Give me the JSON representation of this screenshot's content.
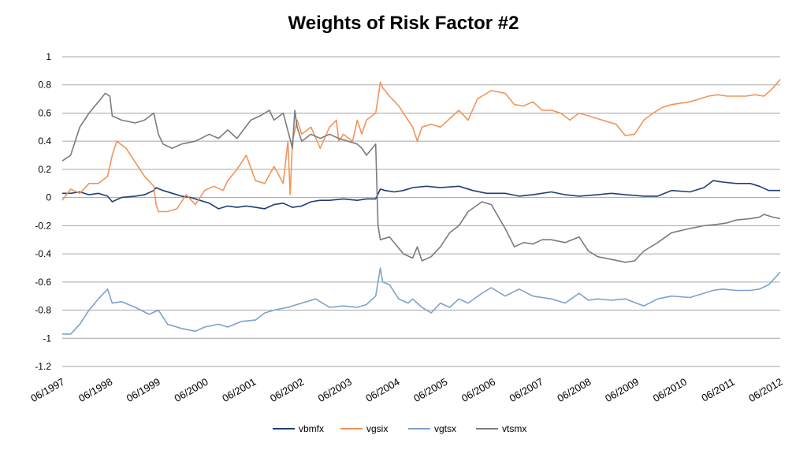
{
  "chart_data": {
    "type": "line",
    "title": "Weights of Risk Factor #2",
    "xlabel": "",
    "ylabel": "",
    "ylim": [
      -1.2,
      1
    ],
    "yticks": [
      1,
      0.8,
      0.6,
      0.4,
      0.2,
      0,
      -0.2,
      -0.4,
      -0.6,
      -0.8,
      -1,
      -1.2
    ],
    "ytick_labels": [
      "1",
      "0.8",
      "0.6",
      "0.4",
      "0.2",
      "0",
      "-0.2",
      "-0.4",
      "-0.6",
      "-0.8",
      "-1",
      "-1.2"
    ],
    "xlim": [
      1997.42,
      2012.95
    ],
    "xtick_labels": [
      "06/1997",
      "06/1998",
      "06/1999",
      "06/2000",
      "06/2001",
      "06/2002",
      "06/2003",
      "06/2004",
      "06/2005",
      "06/2006",
      "06/2007",
      "06/2008",
      "06/2009",
      "06/2010",
      "06/2011",
      "06/2012"
    ],
    "grid": true,
    "legend_position": "bottom",
    "series": [
      {
        "name": "vbmfx",
        "color": "#1f3f73",
        "x": [
          1997.42,
          1997.6,
          1997.8,
          1998.0,
          1998.2,
          1998.4,
          1998.5,
          1998.7,
          1999.0,
          1999.2,
          1999.4,
          1999.45,
          1999.6,
          1999.8,
          2000.0,
          2000.2,
          2000.4,
          2000.6,
          2000.8,
          2001.0,
          2001.2,
          2001.4,
          2001.6,
          2001.8,
          2002.0,
          2002.2,
          2002.4,
          2002.6,
          2002.8,
          2003.0,
          2003.2,
          2003.5,
          2003.8,
          2004.0,
          2004.2,
          2004.3,
          2004.4,
          2004.6,
          2004.8,
          2005.0,
          2005.3,
          2005.6,
          2006.0,
          2006.3,
          2006.6,
          2007.0,
          2007.3,
          2007.6,
          2008.0,
          2008.3,
          2008.6,
          2009.0,
          2009.3,
          2009.6,
          2010.0,
          2010.3,
          2010.6,
          2011.0,
          2011.3,
          2011.5,
          2011.7,
          2012.0,
          2012.3,
          2012.5,
          2012.7,
          2012.95
        ],
        "values": [
          0.03,
          0.03,
          0.04,
          0.02,
          0.03,
          0.01,
          -0.03,
          0.0,
          0.01,
          0.02,
          0.05,
          0.07,
          0.05,
          0.03,
          0.01,
          0.0,
          -0.02,
          -0.04,
          -0.08,
          -0.06,
          -0.07,
          -0.06,
          -0.07,
          -0.08,
          -0.05,
          -0.04,
          -0.07,
          -0.06,
          -0.03,
          -0.02,
          -0.02,
          -0.01,
          -0.02,
          -0.01,
          -0.01,
          0.06,
          0.05,
          0.04,
          0.05,
          0.07,
          0.08,
          0.07,
          0.08,
          0.05,
          0.03,
          0.03,
          0.01,
          0.02,
          0.04,
          0.02,
          0.01,
          0.02,
          0.03,
          0.02,
          0.01,
          0.01,
          0.05,
          0.04,
          0.07,
          0.12,
          0.11,
          0.1,
          0.1,
          0.08,
          0.05,
          0.05
        ]
      },
      {
        "name": "vgsix",
        "color": "#f0955a",
        "x": [
          1997.42,
          1997.6,
          1997.8,
          1998.0,
          1998.2,
          1998.4,
          1998.5,
          1998.6,
          1998.8,
          1999.0,
          1999.2,
          1999.4,
          1999.45,
          1999.5,
          1999.7,
          1999.9,
          2000.1,
          2000.3,
          2000.5,
          2000.7,
          2000.9,
          2001.0,
          2001.2,
          2001.4,
          2001.6,
          2001.8,
          2002.0,
          2002.2,
          2002.3,
          2002.35,
          2002.4,
          2002.5,
          2002.6,
          2002.8,
          2003.0,
          2003.2,
          2003.35,
          2003.4,
          2003.5,
          2003.7,
          2003.8,
          2003.9,
          2004.0,
          2004.2,
          2004.3,
          2004.35,
          2004.5,
          2004.7,
          2004.9,
          2005.0,
          2005.1,
          2005.2,
          2005.4,
          2005.6,
          2005.8,
          2006.0,
          2006.2,
          2006.4,
          2006.5,
          2006.7,
          2007.0,
          2007.2,
          2007.4,
          2007.6,
          2007.8,
          2008.0,
          2008.2,
          2008.4,
          2008.6,
          2008.8,
          2009.0,
          2009.2,
          2009.4,
          2009.6,
          2009.8,
          2010.0,
          2010.2,
          2010.4,
          2010.6,
          2010.8,
          2011.0,
          2011.2,
          2011.4,
          2011.6,
          2011.8,
          2012.0,
          2012.2,
          2012.4,
          2012.6,
          2012.8,
          2012.95
        ],
        "values": [
          -0.02,
          0.06,
          0.03,
          0.1,
          0.1,
          0.15,
          0.3,
          0.4,
          0.35,
          0.25,
          0.15,
          0.08,
          -0.05,
          -0.1,
          -0.1,
          -0.08,
          0.02,
          -0.05,
          0.05,
          0.08,
          0.05,
          0.12,
          0.2,
          0.3,
          0.12,
          0.1,
          0.22,
          0.1,
          0.4,
          0.02,
          0.4,
          0.55,
          0.45,
          0.5,
          0.35,
          0.5,
          0.55,
          0.4,
          0.45,
          0.4,
          0.55,
          0.45,
          0.55,
          0.6,
          0.82,
          0.78,
          0.72,
          0.65,
          0.55,
          0.5,
          0.4,
          0.5,
          0.52,
          0.5,
          0.56,
          0.62,
          0.55,
          0.7,
          0.72,
          0.76,
          0.74,
          0.66,
          0.65,
          0.68,
          0.62,
          0.62,
          0.6,
          0.55,
          0.6,
          0.58,
          0.56,
          0.54,
          0.52,
          0.44,
          0.45,
          0.55,
          0.6,
          0.64,
          0.66,
          0.67,
          0.68,
          0.7,
          0.72,
          0.73,
          0.72,
          0.72,
          0.72,
          0.73,
          0.72,
          0.78,
          0.84
        ]
      },
      {
        "name": "vgtsx",
        "color": "#7ca3cb",
        "x": [
          1997.42,
          1997.6,
          1997.8,
          1998.0,
          1998.2,
          1998.4,
          1998.5,
          1998.7,
          1999.0,
          1999.3,
          1999.5,
          1999.7,
          2000.0,
          2000.3,
          2000.5,
          2000.8,
          2001.0,
          2001.3,
          2001.6,
          2001.8,
          2002.0,
          2002.3,
          2002.6,
          2002.9,
          2003.2,
          2003.5,
          2003.8,
          2004.0,
          2004.2,
          2004.3,
          2004.35,
          2004.5,
          2004.7,
          2004.9,
          2005.0,
          2005.2,
          2005.4,
          2005.6,
          2005.8,
          2006.0,
          2006.2,
          2006.5,
          2006.7,
          2007.0,
          2007.3,
          2007.6,
          2008.0,
          2008.3,
          2008.6,
          2008.8,
          2009.0,
          2009.3,
          2009.6,
          2010.0,
          2010.3,
          2010.6,
          2011.0,
          2011.3,
          2011.5,
          2011.7,
          2012.0,
          2012.3,
          2012.5,
          2012.7,
          2012.95
        ],
        "values": [
          -0.97,
          -0.97,
          -0.9,
          -0.8,
          -0.72,
          -0.65,
          -0.75,
          -0.74,
          -0.78,
          -0.83,
          -0.8,
          -0.9,
          -0.93,
          -0.95,
          -0.92,
          -0.9,
          -0.92,
          -0.88,
          -0.87,
          -0.82,
          -0.8,
          -0.78,
          -0.75,
          -0.72,
          -0.78,
          -0.77,
          -0.78,
          -0.76,
          -0.7,
          -0.5,
          -0.6,
          -0.62,
          -0.72,
          -0.75,
          -0.72,
          -0.78,
          -0.82,
          -0.75,
          -0.78,
          -0.72,
          -0.75,
          -0.68,
          -0.64,
          -0.7,
          -0.65,
          -0.7,
          -0.72,
          -0.75,
          -0.68,
          -0.73,
          -0.72,
          -0.73,
          -0.72,
          -0.77,
          -0.72,
          -0.7,
          -0.71,
          -0.68,
          -0.66,
          -0.65,
          -0.66,
          -0.66,
          -0.65,
          -0.62,
          -0.53
        ]
      },
      {
        "name": "vtsmx",
        "color": "#7b7b7b",
        "x": [
          1997.42,
          1997.6,
          1997.8,
          1998.0,
          1998.2,
          1998.35,
          1998.45,
          1998.5,
          1998.7,
          1999.0,
          1999.2,
          1999.4,
          1999.5,
          1999.6,
          1999.8,
          2000.0,
          2000.3,
          2000.6,
          2000.8,
          2001.0,
          2001.2,
          2001.5,
          2001.7,
          2001.9,
          2002.0,
          2002.2,
          2002.4,
          2002.45,
          2002.5,
          2002.6,
          2002.8,
          2003.0,
          2003.2,
          2003.4,
          2003.6,
          2003.8,
          2003.9,
          2004.0,
          2004.2,
          2004.25,
          2004.3,
          2004.5,
          2004.8,
          2005.0,
          2005.1,
          2005.2,
          2005.4,
          2005.6,
          2005.8,
          2006.0,
          2006.2,
          2006.5,
          2006.7,
          2007.0,
          2007.2,
          2007.4,
          2007.6,
          2007.8,
          2008.0,
          2008.3,
          2008.6,
          2008.8,
          2009.0,
          2009.3,
          2009.6,
          2009.8,
          2010.0,
          2010.3,
          2010.6,
          2011.0,
          2011.3,
          2011.6,
          2011.8,
          2012.0,
          2012.3,
          2012.5,
          2012.6,
          2012.8,
          2012.95
        ],
        "values": [
          0.26,
          0.3,
          0.5,
          0.6,
          0.68,
          0.74,
          0.72,
          0.58,
          0.55,
          0.53,
          0.55,
          0.6,
          0.45,
          0.38,
          0.35,
          0.38,
          0.4,
          0.45,
          0.42,
          0.48,
          0.42,
          0.55,
          0.58,
          0.62,
          0.55,
          0.6,
          0.35,
          0.62,
          0.5,
          0.4,
          0.45,
          0.42,
          0.45,
          0.42,
          0.4,
          0.38,
          0.35,
          0.3,
          0.38,
          -0.2,
          -0.3,
          -0.28,
          -0.4,
          -0.43,
          -0.35,
          -0.45,
          -0.42,
          -0.35,
          -0.25,
          -0.2,
          -0.1,
          -0.03,
          -0.05,
          -0.22,
          -0.35,
          -0.32,
          -0.33,
          -0.3,
          -0.3,
          -0.32,
          -0.28,
          -0.38,
          -0.42,
          -0.44,
          -0.46,
          -0.45,
          -0.38,
          -0.32,
          -0.25,
          -0.22,
          -0.2,
          -0.19,
          -0.18,
          -0.16,
          -0.15,
          -0.14,
          -0.12,
          -0.14,
          -0.15
        ]
      }
    ]
  }
}
